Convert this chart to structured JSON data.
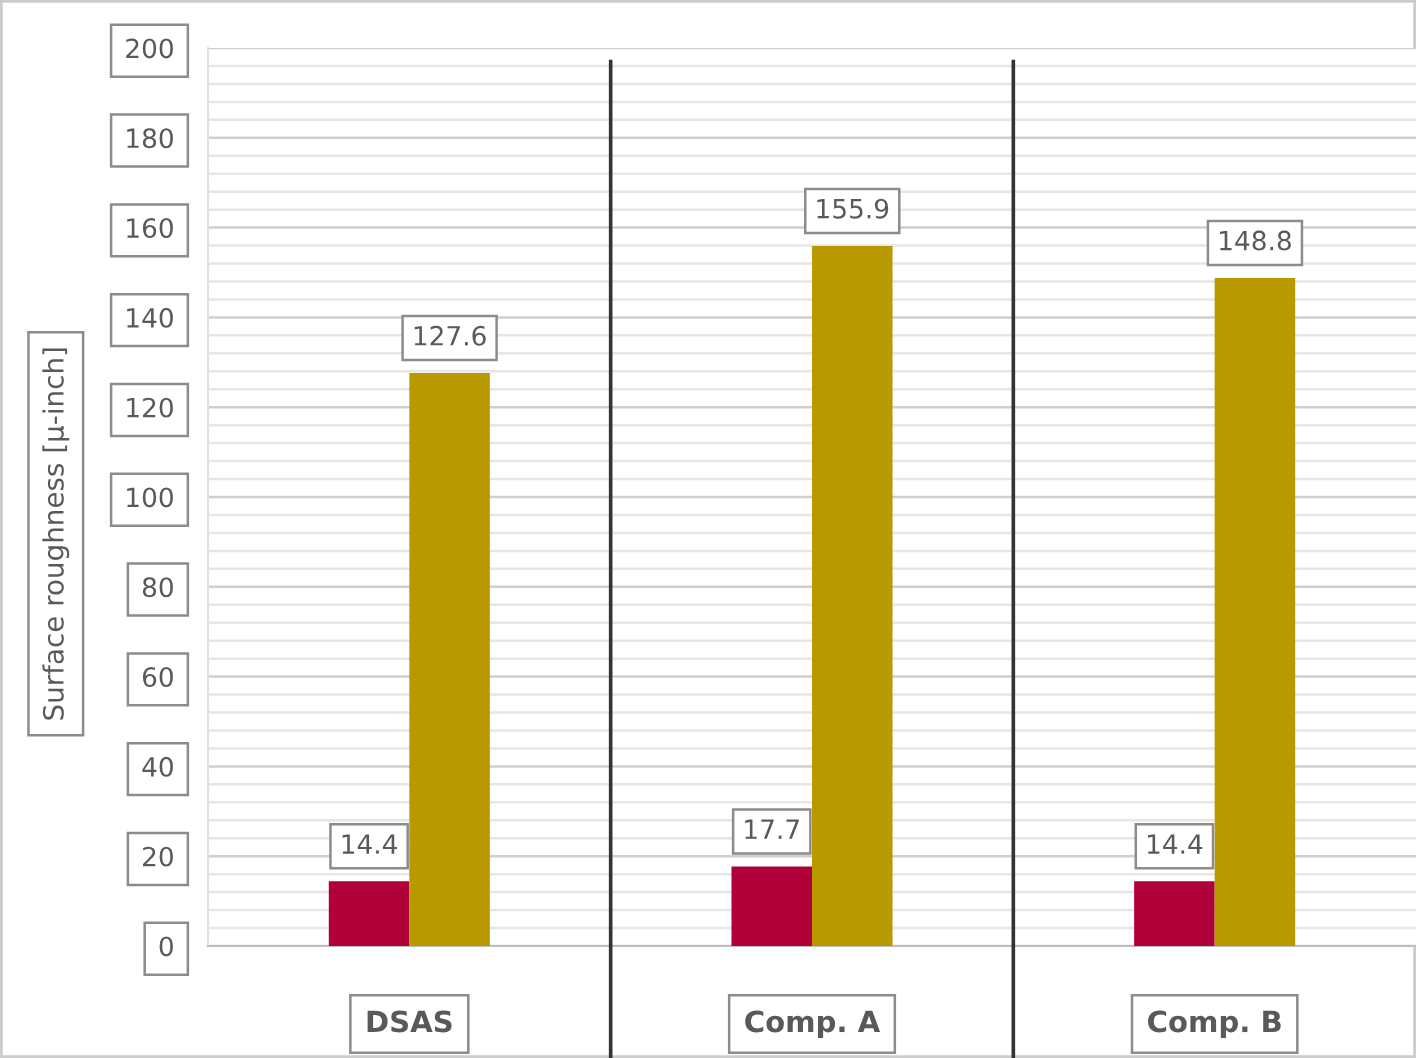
{
  "chart_data": {
    "type": "bar",
    "categories": [
      "DSAS",
      "Comp. A",
      "Comp. B"
    ],
    "series": [
      {
        "color": "#b0003a",
        "values": [
          14.4,
          17.7,
          14.4
        ]
      },
      {
        "color": "#b89a00",
        "values": [
          127.6,
          155.9,
          148.8
        ]
      }
    ],
    "ylabel": "Surface roughness [µ-inch]",
    "ylim": [
      0,
      200
    ],
    "yticks": [
      0,
      {
        "value": 4,
        "label": null
      },
      {
        "value": 8,
        "label": null
      },
      {
        "value": 12,
        "label": null
      },
      {
        "value": 16,
        "label": null
      },
      20,
      {
        "value": 24,
        "label": null
      },
      {
        "value": 28,
        "label": null
      },
      {
        "value": 32,
        "label": null
      },
      {
        "value": 36,
        "label": null
      },
      40,
      {
        "value": 44,
        "label": null
      },
      {
        "value": 48,
        "label": null
      },
      {
        "value": 52,
        "label": null
      },
      {
        "value": 56,
        "label": null
      },
      60,
      {
        "value": 64,
        "label": null
      },
      {
        "value": 68,
        "label": null
      },
      {
        "value": 72,
        "label": null
      },
      {
        "value": 76,
        "label": null
      },
      80,
      {
        "value": 84,
        "label": null
      },
      {
        "value": 88,
        "label": null
      },
      {
        "value": 92,
        "label": null
      },
      {
        "value": 96,
        "label": null
      },
      100,
      {
        "value": 104,
        "label": null
      },
      {
        "value": 108,
        "label": null
      },
      {
        "value": 112,
        "label": null
      },
      {
        "value": 116,
        "label": null
      },
      120,
      {
        "value": 124,
        "label": null
      },
      {
        "value": 128,
        "label": null
      },
      {
        "value": 132,
        "label": null
      },
      {
        "value": 136,
        "label": null
      },
      140,
      {
        "value": 144,
        "label": null
      },
      {
        "value": 148,
        "label": null
      },
      {
        "value": 152,
        "label": null
      },
      {
        "value": 156,
        "label": null
      },
      160,
      {
        "value": 164,
        "label": null
      },
      {
        "value": 168,
        "label": null
      },
      {
        "value": 172,
        "label": null
      },
      {
        "value": 176,
        "label": null
      },
      180,
      {
        "value": 184,
        "label": null
      },
      {
        "value": 188,
        "label": null
      },
      {
        "value": 192,
        "label": null
      },
      {
        "value": 196,
        "label": null
      },
      200
    ],
    "grid": "y",
    "data_labels": true
  }
}
